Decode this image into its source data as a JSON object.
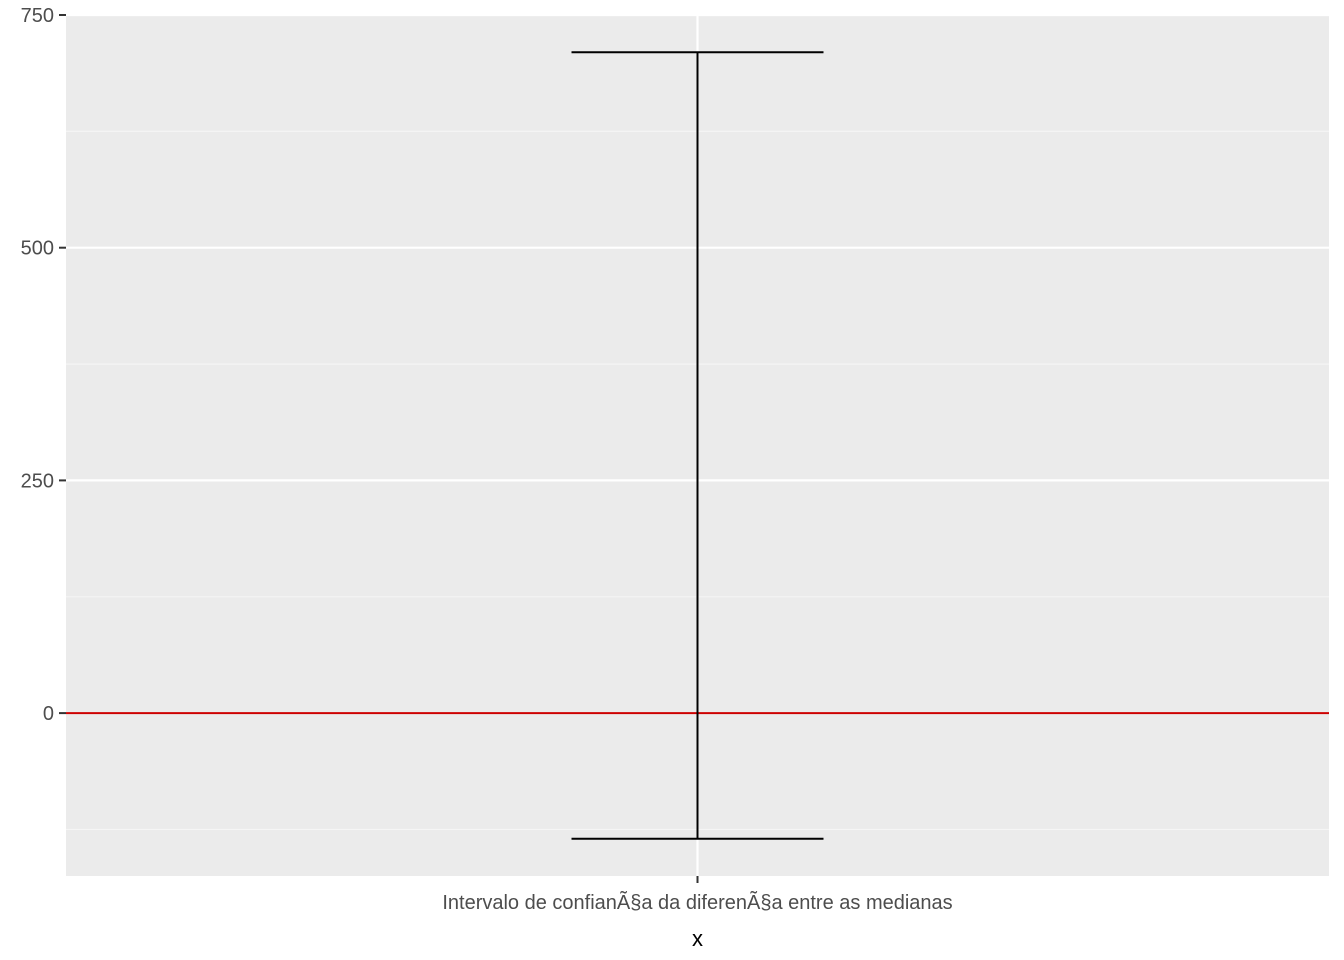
{
  "colors": {
    "panel_background": "#EBEBEB",
    "major_grid": "#FFFFFF",
    "minor_grid": "#F5F5F5",
    "errorbar": "#000000",
    "reference_line": "#CC0000",
    "tick_text": "#4D4D4D",
    "axis_title": "#000000"
  },
  "chart_data": {
    "type": "errorbar",
    "title": "",
    "xlabel": "x",
    "ylabel": "",
    "categories": [
      "Intervalo de confianÃ§a da diferenÃ§a entre as medianas"
    ],
    "intervals": [
      {
        "category": "Intervalo de confianÃ§a da diferenÃ§a entre as medianas",
        "lower": -135,
        "upper": 710
      }
    ],
    "reference_line": {
      "y": 0,
      "color": "#CC0000"
    },
    "ylim": [
      -175,
      750
    ],
    "y_ticks": [
      0,
      250,
      500,
      750
    ],
    "y_tick_labels": [
      "0",
      "250",
      "500",
      "750"
    ],
    "y_minor_ticks": [
      -125,
      125,
      375,
      625
    ],
    "grid": true,
    "legend": "none"
  }
}
